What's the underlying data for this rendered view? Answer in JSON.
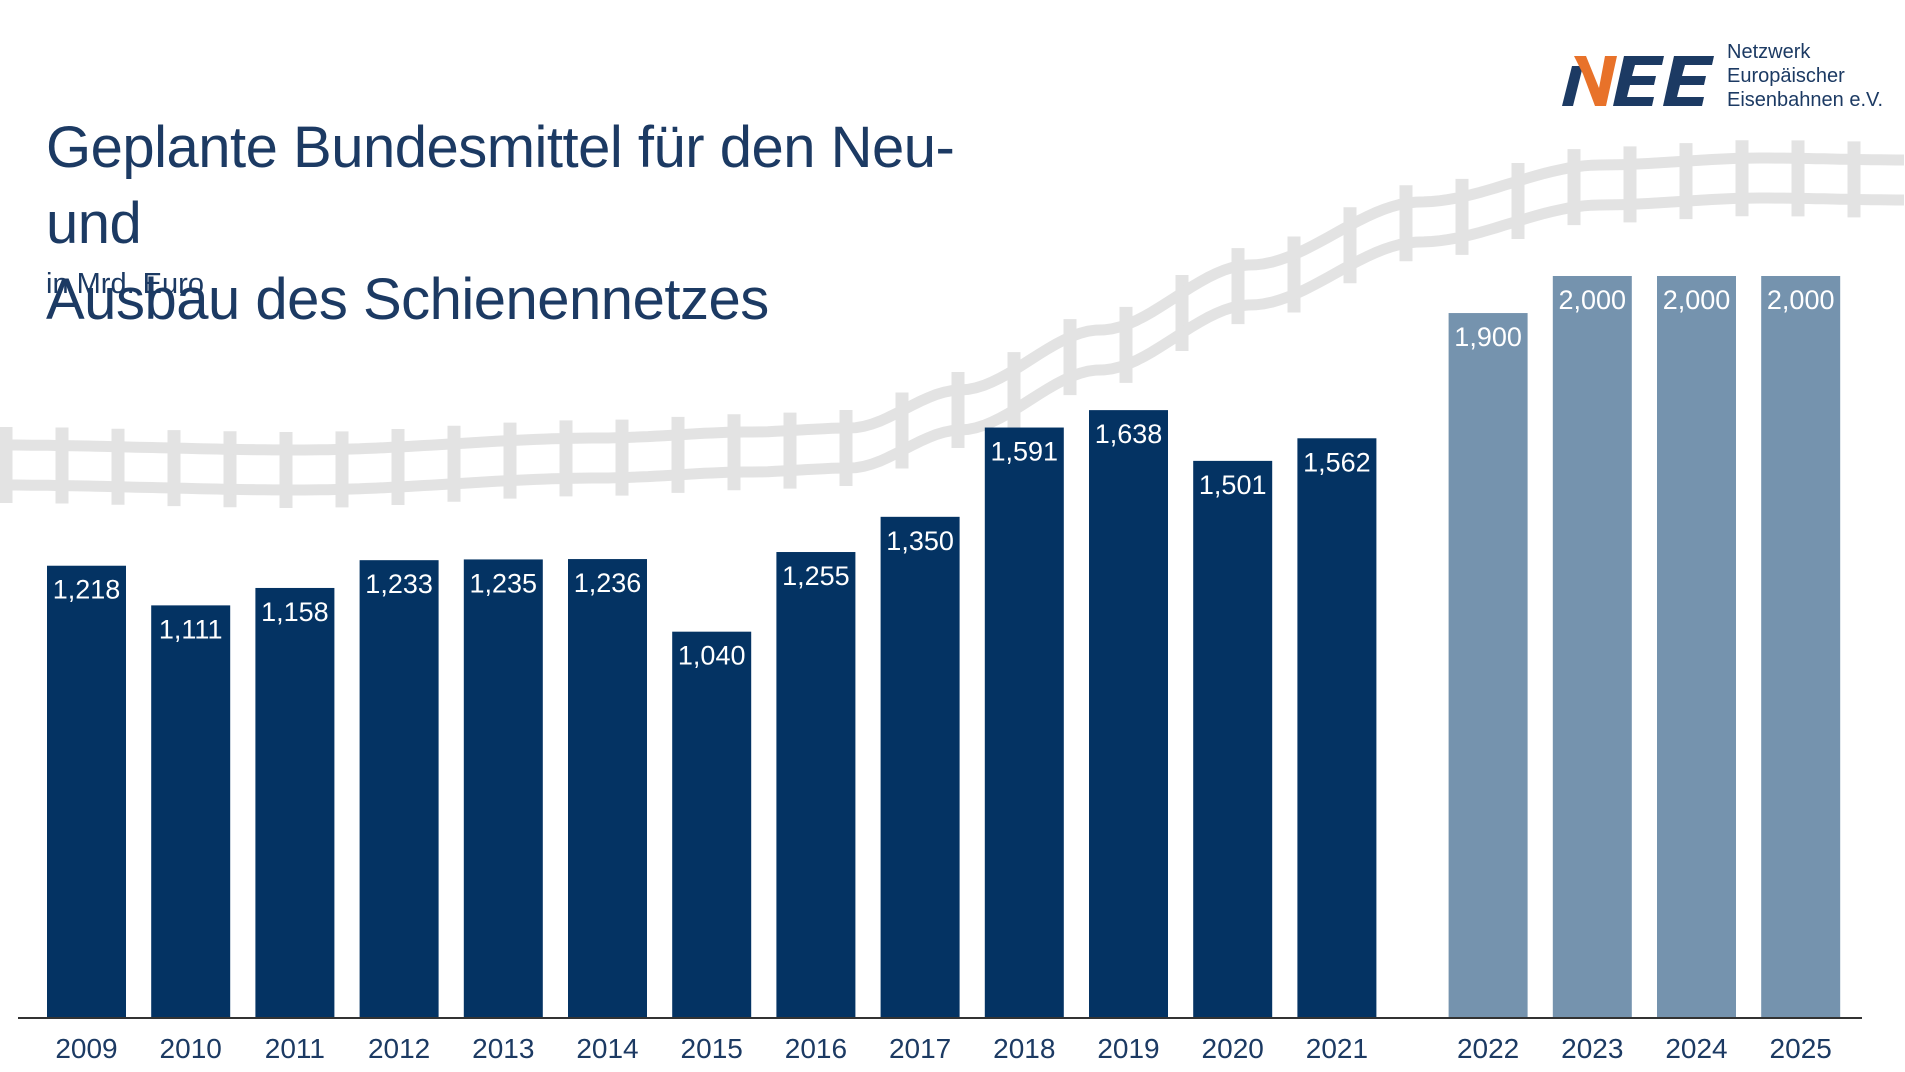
{
  "header": {
    "title_line1": "Geplante Bundesmittel für den Neu- und",
    "title_line2": "Ausbau des Schienennetzes",
    "subtitle": "in Mrd. Euro"
  },
  "logo": {
    "mark": "NEE",
    "line1": "Netzwerk",
    "line2": "Europäischer",
    "line3": "Eisenbahnen e.V.",
    "colors": {
      "accent": "#e8722a",
      "navy": "#1c3a63"
    }
  },
  "colors": {
    "actual": "#043363",
    "planned": "#7593ae",
    "track": "#e3e3e3",
    "text": "#1c3a63"
  },
  "chart_data": {
    "type": "bar",
    "categories": [
      "2009",
      "2010",
      "2011",
      "2012",
      "2013",
      "2014",
      "2015",
      "2016",
      "2017",
      "2018",
      "2019",
      "2020",
      "2021",
      "2022",
      "2023",
      "2024",
      "2025"
    ],
    "values": [
      1.218,
      1.111,
      1.158,
      1.233,
      1.235,
      1.236,
      1.04,
      1.255,
      1.35,
      1.591,
      1.638,
      1.501,
      1.562,
      1.9,
      2.0,
      2.0,
      2.0
    ],
    "labels": [
      "1,218",
      "1,111",
      "1,158",
      "1,233",
      "1,235",
      "1,236",
      "1,040",
      "1,255",
      "1,350",
      "1,591",
      "1,638",
      "1,501",
      "1,562",
      "1,900",
      "2,000",
      "2,000",
      "2,000"
    ],
    "groups": [
      "actual",
      "actual",
      "actual",
      "actual",
      "actual",
      "actual",
      "actual",
      "actual",
      "actual",
      "actual",
      "actual",
      "actual",
      "actual",
      "planned",
      "planned",
      "planned",
      "planned"
    ],
    "title": "Geplante Bundesmittel für den Neu- und Ausbau des Schienennetzes",
    "ylabel": "in Mrd. Euro",
    "xlabel": "",
    "ylim": [
      0,
      2.0
    ],
    "grid": false,
    "legend": "none"
  }
}
